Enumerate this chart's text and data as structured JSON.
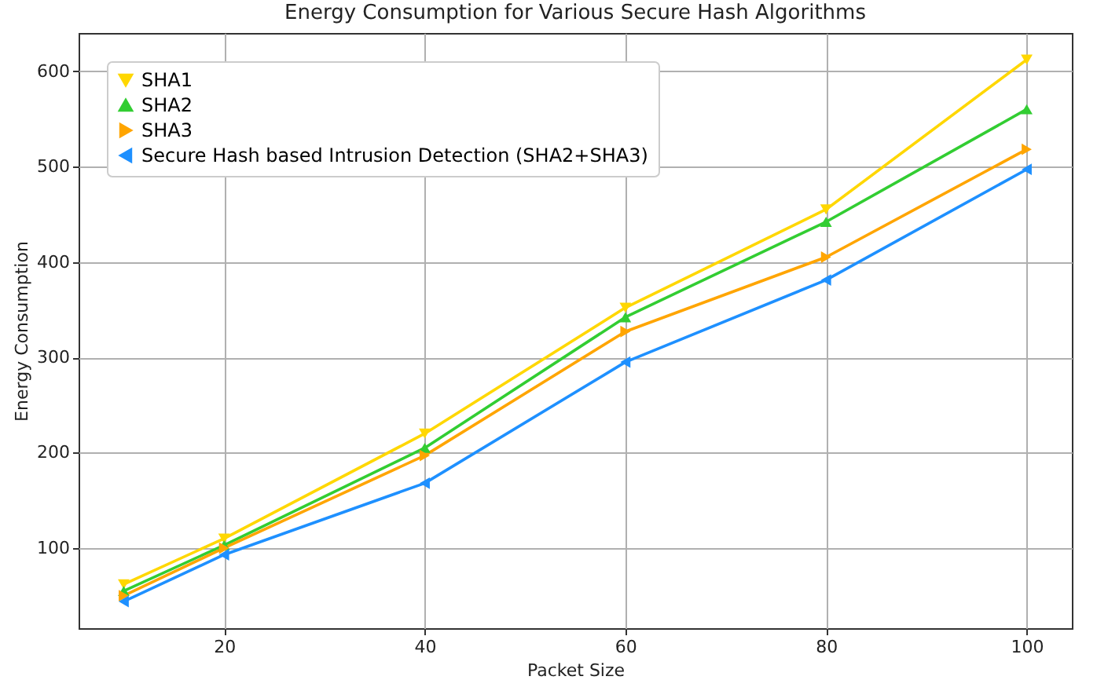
{
  "chart_data": {
    "type": "line",
    "title": "Energy Consumption for Various Secure Hash Algorithms",
    "xlabel": "Packet Size",
    "ylabel": "Energy Consumption",
    "x": [
      10,
      20,
      40,
      60,
      80,
      100
    ],
    "series": [
      {
        "name": "SHA1",
        "color": "#ffd700",
        "marker": "triangle-down",
        "values": [
          62,
          110,
          220,
          352,
          455,
          612
        ]
      },
      {
        "name": "SHA2",
        "color": "#32cd32",
        "marker": "triangle-up",
        "values": [
          55,
          103,
          205,
          342,
          442,
          560
        ]
      },
      {
        "name": "SHA3",
        "color": "#ffa500",
        "marker": "triangle-right",
        "values": [
          50,
          100,
          197,
          327,
          405,
          518
        ]
      },
      {
        "name": "Secure Hash based Intrusion Detection (SHA2+SHA3)",
        "color": "#1e90ff",
        "marker": "triangle-left",
        "values": [
          44,
          93,
          168,
          295,
          381,
          497
        ]
      }
    ],
    "xlim": [
      5.5,
      104.5
    ],
    "xticks": [
      20,
      40,
      60,
      80,
      100
    ],
    "ylim": [
      16,
      640
    ],
    "yticks": [
      100,
      200,
      300,
      400,
      500,
      600
    ],
    "grid": true,
    "legend": "top left",
    "line_style": "solid"
  }
}
